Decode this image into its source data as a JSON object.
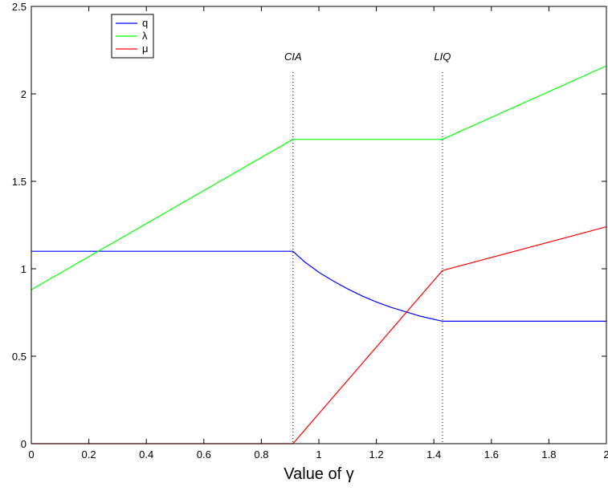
{
  "chart_data": {
    "type": "line",
    "xlabel": "Value of γ",
    "xlim": [
      0,
      2
    ],
    "ylim": [
      0,
      2.5
    ],
    "x_ticks": [
      0,
      0.2,
      0.4,
      0.6,
      0.8,
      1,
      1.2,
      1.4,
      1.6,
      1.8,
      2
    ],
    "x_tick_labels": [
      "0",
      "0.2",
      "0.4",
      "0.6",
      "0.8",
      "1",
      "1.2",
      "1.4",
      "1.6",
      "1.8",
      "2"
    ],
    "y_ticks": [
      0,
      0.5,
      1,
      1.5,
      2,
      2.5
    ],
    "y_tick_labels": [
      "0",
      "0.5",
      "1",
      "1.5",
      "2",
      "2.5"
    ],
    "grid": false,
    "legend_position": "top-left",
    "series": [
      {
        "name": "q",
        "color": "#0000ff",
        "x": [
          0,
          0.91,
          0.95,
          1.0,
          1.05,
          1.1,
          1.15,
          1.2,
          1.25,
          1.3,
          1.35,
          1.43,
          2.0
        ],
        "y": [
          1.1,
          1.1,
          1.04,
          0.98,
          0.93,
          0.885,
          0.845,
          0.81,
          0.78,
          0.755,
          0.73,
          0.7,
          0.7
        ]
      },
      {
        "name": "λ",
        "color": "#00ff00",
        "x": [
          0,
          0.91,
          1.43,
          2.0
        ],
        "y": [
          0.88,
          1.74,
          1.74,
          2.16
        ]
      },
      {
        "name": "μ",
        "color": "#ff0000",
        "x": [
          0,
          0.91,
          1.43,
          2.0
        ],
        "y": [
          0,
          0,
          0.99,
          1.24
        ]
      }
    ],
    "vlines": [
      {
        "x": 0.91,
        "label": "CIA"
      },
      {
        "x": 1.43,
        "label": "LIQ"
      }
    ]
  }
}
